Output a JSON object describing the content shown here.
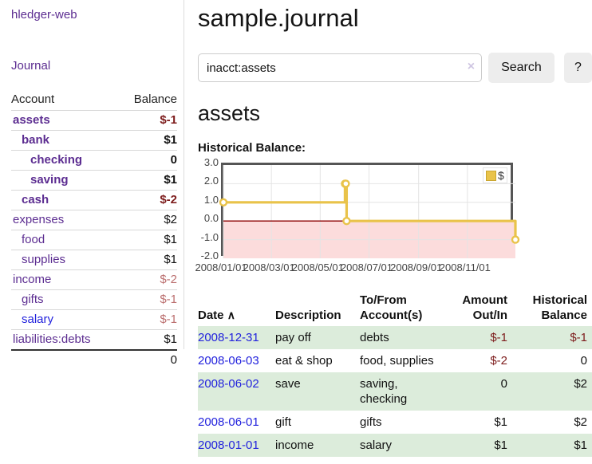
{
  "app": {
    "brand": "hledger-web",
    "nav_journal": "Journal"
  },
  "colors": {
    "link_purple": "#5c2d91",
    "link_blue": "#2222dd",
    "negative_strong": "#7d1c1c",
    "negative_dim": "#bb6f6f",
    "row_green": "#dcecdb",
    "chart_line_gold": "#e9c34a",
    "chart_negative_fill": "#fcdcdc",
    "chart_zero_line": "#8b0000"
  },
  "sidebar": {
    "header": {
      "account": "Account",
      "balance": "Balance"
    },
    "accounts": [
      {
        "label": "assets",
        "depth": 1,
        "bold": true,
        "balance": "$-1",
        "style": "neg"
      },
      {
        "label": "bank",
        "depth": 2,
        "bold": true,
        "balance": "$1",
        "style": "plain"
      },
      {
        "label": "checking",
        "depth": 3,
        "bold": true,
        "balance": "0",
        "style": "plain"
      },
      {
        "label": "saving",
        "depth": 3,
        "bold": true,
        "balance": "$1",
        "style": "plain"
      },
      {
        "label": "cash",
        "depth": 2,
        "bold": true,
        "balance": "$-2",
        "style": "neg"
      },
      {
        "label": "expenses",
        "depth": 1,
        "bold": false,
        "balance": "$2",
        "style": "plain"
      },
      {
        "label": "food",
        "depth": 2,
        "bold": false,
        "balance": "$1",
        "style": "plain"
      },
      {
        "label": "supplies",
        "depth": 2,
        "bold": false,
        "balance": "$1",
        "style": "plain"
      },
      {
        "label": "income",
        "depth": 1,
        "bold": false,
        "balance": "$-2",
        "style": "dim-neg"
      },
      {
        "label": "gifts",
        "depth": 2,
        "bold": false,
        "balance": "$-1",
        "style": "dim-neg"
      },
      {
        "label": "salary",
        "depth": 2,
        "bold": false,
        "balance": "$-1",
        "style": "dim-neg",
        "link_color": "blue"
      },
      {
        "label": "liabilities:debts",
        "depth": 1,
        "bold": false,
        "balance": "$1",
        "style": "plain"
      }
    ],
    "total": "0"
  },
  "main": {
    "title": "sample.journal",
    "search": {
      "value": "inacct:assets",
      "clear_icon": "×",
      "search_label": "Search",
      "help_label": "?"
    },
    "account_heading": "assets",
    "chart_label": "Historical Balance:"
  },
  "chart_data": {
    "type": "line",
    "style": "steps-with-points",
    "title": "Historical Balance:",
    "series": [
      {
        "name": "$",
        "color": "#e9c34a",
        "points": [
          [
            "2008-01-01",
            1
          ],
          [
            "2008-06-01",
            2
          ],
          [
            "2008-06-02",
            2
          ],
          [
            "2008-06-03",
            0
          ],
          [
            "2008-12-31",
            -1
          ]
        ]
      }
    ],
    "xrange": [
      "2008-01-01",
      "2008-12-31"
    ],
    "ylim": [
      -2,
      3
    ],
    "yticks": [
      3.0,
      2.0,
      1.0,
      0.0,
      -1.0,
      -2.0
    ],
    "xticks": [
      "2008/01/01",
      "2008/03/01",
      "2008/05/01",
      "2008/07/01",
      "2008/09/01",
      "2008/11/01"
    ],
    "legend": {
      "label": "$",
      "position": "top-right"
    },
    "grid": true,
    "negative_region_color": "#fcdcdc",
    "zero_line_color": "#8b0000"
  },
  "register": {
    "columns": [
      "Date",
      "Description",
      "To/From Account(s)",
      "Amount Out/In",
      "Historical Balance"
    ],
    "sort_icon": "∧",
    "rows": [
      {
        "date": "2008-12-31",
        "description": "pay off",
        "accounts": "debts",
        "amount": "$-1",
        "amount_style": "neg",
        "balance": "$-1",
        "balance_style": "neg",
        "shaded": true
      },
      {
        "date": "2008-06-03",
        "description": "eat & shop",
        "accounts": "food, supplies",
        "amount": "$-2",
        "amount_style": "neg",
        "balance": "0",
        "balance_style": "plain",
        "shaded": false
      },
      {
        "date": "2008-06-02",
        "description": "save",
        "accounts": "saving, checking",
        "amount": "0",
        "amount_style": "plain",
        "balance": "$2",
        "balance_style": "plain",
        "shaded": true
      },
      {
        "date": "2008-06-01",
        "description": "gift",
        "accounts": "gifts",
        "amount": "$1",
        "amount_style": "plain",
        "balance": "$2",
        "balance_style": "plain",
        "shaded": false
      },
      {
        "date": "2008-01-01",
        "description": "income",
        "accounts": "salary",
        "amount": "$1",
        "amount_style": "plain",
        "balance": "$1",
        "balance_style": "plain",
        "shaded": true
      }
    ]
  }
}
